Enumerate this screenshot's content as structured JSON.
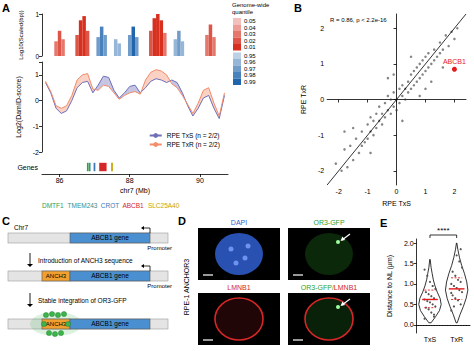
{
  "chart_data": [
    {
      "panel": "A",
      "type": "line",
      "x_label": "chr7 (Mb)",
      "xlim": [
        85.5,
        90.8
      ],
      "xticks": [
        86,
        88,
        90
      ],
      "y_label": "Log2(DamID-score)",
      "ylim": [
        -2,
        1.5
      ],
      "yticks": [
        -2,
        -1,
        0,
        1
      ],
      "legend": "bottom-right",
      "x": [
        85.6,
        85.75,
        85.9,
        86.05,
        86.2,
        86.35,
        86.5,
        86.65,
        86.8,
        86.95,
        87.1,
        87.25,
        87.4,
        87.55,
        87.7,
        87.85,
        88.0,
        88.15,
        88.3,
        88.45,
        88.6,
        88.75,
        88.9,
        89.05,
        89.2,
        89.35,
        89.5,
        89.65,
        89.8,
        89.95,
        90.1,
        90.25,
        90.4,
        90.55,
        90.7
      ],
      "series": [
        {
          "name": "RPE TxS (n = 2/2)",
          "color": "#6f6fb8",
          "values": [
            0.7,
            0.3,
            -0.3,
            -0.5,
            -0.4,
            0.0,
            0.5,
            0.7,
            0.75,
            0.3,
            0.6,
            0.95,
            0.9,
            0.4,
            0.1,
            0.3,
            0.55,
            0.6,
            0.3,
            0.5,
            0.75,
            0.85,
            0.8,
            0.7,
            0.8,
            0.7,
            0.3,
            -0.2,
            -0.6,
            -0.3,
            0.1,
            0.2,
            -0.3,
            -0.7,
            0.2
          ]
        },
        {
          "name": "RPE TxR (n = 2/2)",
          "color": "#f28c6a",
          "values": [
            0.75,
            0.35,
            -0.2,
            -0.3,
            -0.2,
            0.2,
            0.8,
            1.0,
            1.05,
            0.45,
            0.4,
            0.6,
            0.55,
            0.3,
            0.05,
            0.2,
            0.3,
            0.35,
            0.25,
            0.8,
            1.1,
            1.2,
            1.15,
            1.0,
            0.65,
            0.5,
            0.2,
            -0.15,
            -0.5,
            -0.1,
            0.4,
            0.5,
            -0.1,
            -0.6,
            0.3
          ]
        }
      ],
      "heat_track": {
        "y_label": "Log10(Scaled(bp))",
        "ylim": [
          0,
          1
        ],
        "yticks": [
          0,
          1
        ],
        "bin_width": 0.1,
        "x": [
          85.9,
          86.0,
          86.1,
          86.5,
          86.6,
          86.7,
          86.8,
          87.1,
          87.2,
          87.3,
          87.6,
          87.7,
          88.0,
          88.1,
          88.2,
          88.6,
          88.7,
          88.8,
          88.9,
          89.0,
          89.3,
          89.4,
          89.5,
          90.2,
          90.3,
          90.4
        ],
        "heights": [
          0.35,
          0.6,
          0.4,
          0.5,
          0.85,
          0.95,
          0.6,
          0.45,
          0.7,
          0.5,
          0.4,
          0.3,
          0.5,
          0.7,
          0.45,
          0.6,
          0.9,
          1.0,
          0.85,
          0.55,
          0.4,
          0.6,
          0.35,
          0.5,
          0.75,
          0.45
        ],
        "quantiles": [
          0.03,
          0.02,
          0.03,
          0.02,
          0.01,
          0.01,
          0.02,
          0.97,
          0.98,
          0.97,
          0.96,
          0.96,
          0.97,
          0.99,
          0.97,
          0.02,
          0.01,
          0.01,
          0.01,
          0.03,
          0.96,
          0.97,
          0.96,
          0.03,
          0.02,
          0.03
        ],
        "colorbar": {
          "title": "Genome-wide quantile",
          "ticks_low": [
            0.05,
            0.04,
            0.03,
            0.02,
            0.01
          ],
          "ticks_high": [
            0.95,
            0.96,
            0.97,
            0.98,
            0.99
          ],
          "color_low": "#d7301f",
          "color_high": "#2166ac"
        }
      },
      "gene_track": {
        "y_label": "Genes",
        "genes": [
          {
            "name": "DMTF1",
            "start": 86.78,
            "end": 86.83,
            "color": "#2e9e4f"
          },
          {
            "name": "TMEM243",
            "start": 86.84,
            "end": 86.87,
            "color": "#3a8d8d"
          },
          {
            "name": "CROT",
            "start": 86.97,
            "end": 87.02,
            "color": "#3d7ab8"
          },
          {
            "name": "ABCB1",
            "start": 87.13,
            "end": 87.34,
            "color": "#d62728"
          },
          {
            "name": "SLC25A40",
            "start": 87.47,
            "end": 87.52,
            "color": "#c9a400"
          }
        ]
      }
    },
    {
      "panel": "B",
      "type": "scatter",
      "x_label": "RPE TxS",
      "y_label": "RPE TxR",
      "xlim": [
        -2.4,
        2.4
      ],
      "xticks": [
        -2,
        -1,
        0,
        1,
        2
      ],
      "ylim": [
        -2.4,
        2.4
      ],
      "yticks": [
        -2,
        -1,
        0,
        1,
        2
      ],
      "annotation": "R = 0.86, p < 2.2e-16",
      "series": [
        {
          "type": "scatter",
          "color": "#333333",
          "x": [
            -2.1,
            -1.9,
            -1.8,
            -1.7,
            -1.6,
            -1.5,
            -1.4,
            -1.3,
            -1.2,
            -1.2,
            -1.1,
            -1.0,
            -1.0,
            -0.9,
            -0.9,
            -0.8,
            -0.8,
            -0.7,
            -0.7,
            -0.6,
            -0.6,
            -0.5,
            -0.5,
            -0.4,
            -0.4,
            -0.3,
            -0.3,
            -0.2,
            -0.2,
            -0.1,
            -0.1,
            0.0,
            0.0,
            0.1,
            0.1,
            0.2,
            0.2,
            0.3,
            0.3,
            0.4,
            0.4,
            0.5,
            0.5,
            0.6,
            0.6,
            0.7,
            0.7,
            0.8,
            0.8,
            0.9,
            0.9,
            1.0,
            1.0,
            1.1,
            1.1,
            1.2,
            1.3,
            1.3,
            1.4,
            1.5,
            1.5,
            1.6,
            1.7,
            1.8,
            1.9,
            2.0,
            2.1,
            -1.5,
            -0.3,
            0.8,
            1.2,
            -0.9,
            0.2,
            1.6,
            -1.8,
            0.5,
            -0.1,
            1.0
          ],
          "values": [
            -1.8,
            -2.0,
            -1.4,
            -1.9,
            -1.3,
            -1.7,
            -1.1,
            -1.5,
            -0.9,
            -1.3,
            -1.2,
            -0.7,
            -1.1,
            -0.9,
            -0.5,
            -1.0,
            -0.6,
            -0.4,
            -0.8,
            -0.6,
            -0.2,
            -0.7,
            -0.4,
            -0.1,
            -0.5,
            -0.3,
            0.1,
            -0.4,
            0.0,
            -0.2,
            0.2,
            0.0,
            -0.3,
            0.3,
            -0.1,
            0.1,
            0.4,
            0.0,
            0.3,
            0.5,
            0.2,
            0.3,
            0.7,
            0.4,
            0.8,
            0.5,
            0.9,
            0.6,
            1.0,
            0.7,
            1.1,
            0.8,
            1.2,
            0.9,
            1.3,
            1.0,
            1.4,
            1.1,
            1.2,
            1.6,
            1.3,
            1.4,
            1.8,
            1.5,
            1.9,
            1.7,
            2.0,
            -0.8,
            0.6,
            0.1,
            0.5,
            -1.5,
            -0.6,
            0.9,
            -0.9,
            1.2,
            0.7,
            0.3
          ]
        },
        {
          "type": "line",
          "color": "#000000",
          "x": [
            -2.4,
            2.4
          ],
          "values": [
            -2.4,
            2.4
          ]
        },
        {
          "type": "scatter",
          "color": "#e41a1c",
          "x": [
            2.0
          ],
          "values": [
            0.85
          ],
          "labels": [
            "ABCB1"
          ]
        }
      ]
    },
    {
      "panel": "E",
      "type": "violin",
      "y_label": "Distance to NL (μm)",
      "categories": [
        "TxS",
        "TxR"
      ],
      "ylim": [
        -0.2,
        2.1
      ],
      "yticks": [
        {
          "value": 0,
          "label": "0.0"
        },
        0.5,
        {
          "value": 1,
          "label": "1.0"
        },
        1.5,
        {
          "value": 2,
          "label": "2.0"
        }
      ],
      "reference_y": 0,
      "annotation": "****",
      "color": "#e41a1c",
      "violins": [
        {
          "y": [
            0.05,
            0.2,
            0.35,
            0.5,
            0.65,
            0.8,
            0.95,
            1.1,
            1.25,
            1.4,
            1.6
          ],
          "density": [
            0.1,
            0.5,
            0.85,
            1.0,
            0.9,
            0.65,
            0.45,
            0.3,
            0.2,
            0.1,
            0.02
          ],
          "median": 0.62,
          "quartiles": [
            0.42,
            0.85
          ],
          "points": [
            0.15,
            0.25,
            0.3,
            0.38,
            0.42,
            0.45,
            0.5,
            0.55,
            0.58,
            0.62,
            0.65,
            0.7,
            0.75,
            0.8,
            0.88,
            0.95,
            1.05,
            1.2,
            1.35,
            0.2
          ]
        },
        {
          "y": [
            0.05,
            0.25,
            0.45,
            0.65,
            0.85,
            1.05,
            1.25,
            1.45,
            1.65,
            1.85,
            2.0
          ],
          "density": [
            0.05,
            0.3,
            0.6,
            0.85,
            1.0,
            0.9,
            0.7,
            0.45,
            0.25,
            0.1,
            0.02
          ],
          "median": 0.88,
          "quartiles": [
            0.62,
            1.15
          ],
          "points": [
            0.35,
            0.5,
            0.6,
            0.65,
            0.72,
            0.8,
            0.85,
            0.9,
            0.95,
            1.0,
            1.05,
            1.1,
            1.2,
            1.3,
            1.4,
            1.55,
            1.7,
            0.45,
            0.78,
            1.85
          ]
        }
      ]
    }
  ],
  "diagram": {
    "panel": "C",
    "chromosome": "Chr7",
    "gene": "ABCB1 gene",
    "promoter": "Promoter",
    "insert": "ANCH3",
    "steps": [
      "Introduction of ANCH3 sequence",
      "Stable integration of OR3-GFP"
    ],
    "gene_color": "#4a90d0",
    "insert_color": "#f0a030",
    "dot_color": "#3cb44b"
  },
  "micrographs": {
    "panel": "D",
    "title": "RPE-1 ANCHOR3",
    "channels": [
      {
        "label": "DAPI",
        "color": "#2f5fd0"
      },
      {
        "label": "OR3-GFP",
        "color": "#2ca02c"
      },
      {
        "label": "LMNB1",
        "color": "#d62728"
      },
      {
        "label": "OR3-GFP/LMNB1",
        "colors": [
          "#2ca02c",
          "#d62728"
        ]
      }
    ]
  }
}
